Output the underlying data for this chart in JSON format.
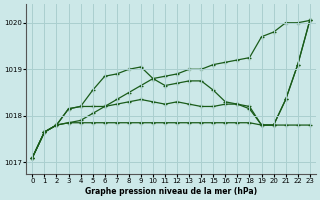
{
  "title": "Graphe pression niveau de la mer (hPa)",
  "background_color": "#cce8e8",
  "grid_color": "#aacfcf",
  "line_color": "#1a5c1a",
  "xlim": [
    -0.5,
    23.5
  ],
  "ylim": [
    1016.75,
    1020.4
  ],
  "yticks": [
    1017,
    1018,
    1019,
    1020
  ],
  "xticks": [
    0,
    1,
    2,
    3,
    4,
    5,
    6,
    7,
    8,
    9,
    10,
    11,
    12,
    13,
    14,
    15,
    16,
    17,
    18,
    19,
    20,
    21,
    22,
    23
  ],
  "series": {
    "flat": [
      1017.1,
      1017.65,
      1017.8,
      1017.85,
      1017.85,
      1017.85,
      1017.85,
      1017.85,
      1017.85,
      1017.85,
      1017.85,
      1017.85,
      1017.85,
      1017.85,
      1017.85,
      1017.85,
      1017.85,
      1017.85,
      1017.85,
      1017.8,
      1017.8,
      1017.8,
      1017.8,
      1017.8
    ],
    "diagonal": [
      1017.1,
      1017.65,
      1017.8,
      1017.85,
      1017.9,
      1018.05,
      1018.2,
      1018.35,
      1018.5,
      1018.65,
      1018.8,
      1018.85,
      1018.9,
      1019.0,
      1019.0,
      1019.1,
      1019.15,
      1019.2,
      1019.25,
      1019.7,
      1019.8,
      1020.0,
      1020.0,
      1020.05
    ],
    "wave1": [
      1017.1,
      1017.65,
      1017.8,
      1018.15,
      1018.2,
      1018.55,
      1018.85,
      1018.9,
      1019.0,
      1019.05,
      1018.8,
      1018.65,
      1018.7,
      1018.75,
      1018.75,
      1018.55,
      1018.3,
      1018.25,
      1018.15,
      1017.8,
      1017.8,
      1018.35,
      1019.1,
      1020.05
    ],
    "wave2": [
      1017.1,
      1017.65,
      1017.8,
      1018.15,
      1018.2,
      1018.2,
      1018.2,
      1018.25,
      1018.3,
      1018.35,
      1018.3,
      1018.25,
      1018.3,
      1018.25,
      1018.2,
      1018.2,
      1018.25,
      1018.25,
      1018.2,
      1017.8,
      1017.8,
      1018.35,
      1019.1,
      1020.05
    ]
  }
}
